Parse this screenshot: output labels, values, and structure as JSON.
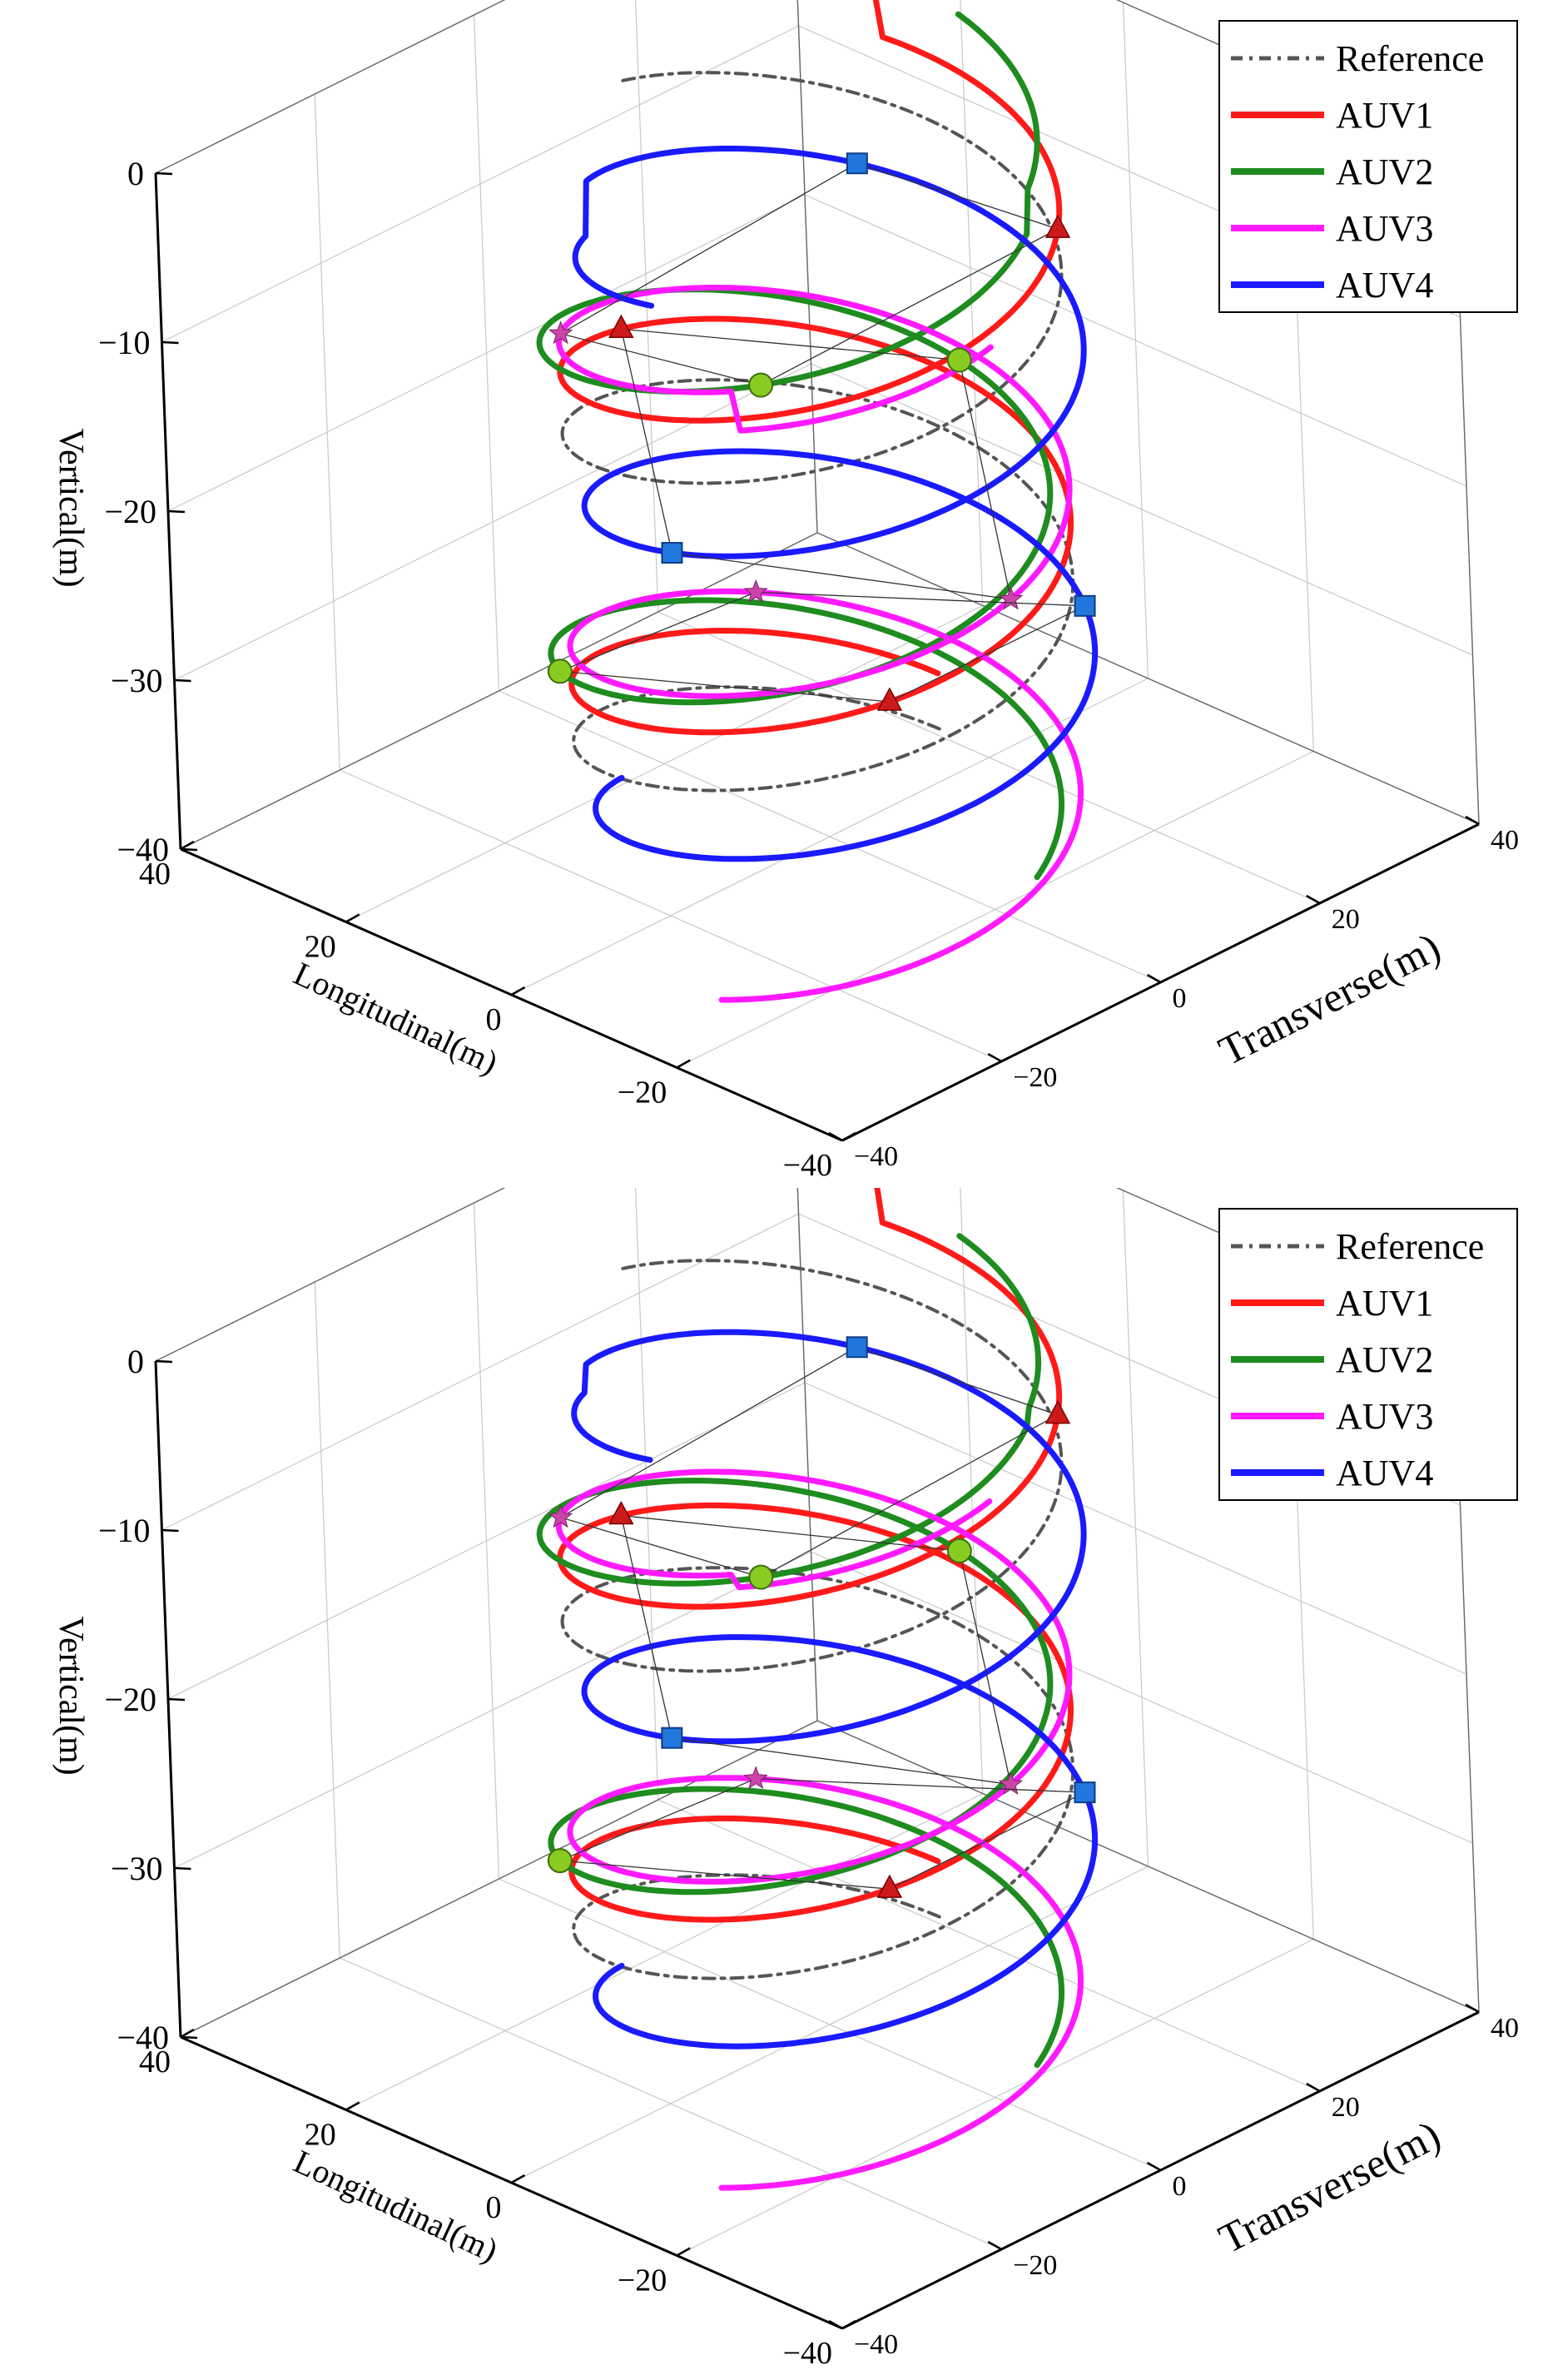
{
  "chart_data": [
    {
      "type": "line3d",
      "title": "",
      "axes": {
        "x": {
          "label": "Longitudinal(m)",
          "range": [
            -40,
            40
          ],
          "ticks": [
            "40",
            "20",
            "0",
            "−20",
            "−40"
          ]
        },
        "y": {
          "label": "Transverse(m)",
          "range": [
            -40,
            40
          ],
          "ticks": [
            "40",
            "20",
            "0",
            "−20",
            "−40"
          ]
        },
        "z": {
          "label": "Vertical(m)",
          "range": [
            -40,
            0
          ],
          "ticks": [
            "0",
            "−10",
            "−20",
            "−30",
            "−40"
          ]
        }
      },
      "grid": true,
      "legend_position": "top-right",
      "helix": {
        "radius": 22,
        "turns": 2.2,
        "z_start": 0,
        "z_end": -40
      },
      "series": [
        {
          "name": "Reference",
          "color": "#555555",
          "style": "dash-dot",
          "phase_deg": 0,
          "offset": 0,
          "start_offset_z": 0,
          "marker": "none"
        },
        {
          "name": "AUV1",
          "color": "#ff1a1a",
          "style": "solid",
          "phase_deg": 0,
          "offset": 6,
          "start_offset_z": 4,
          "marker": "cone",
          "marker_color": "#cc1a1a"
        },
        {
          "name": "AUV2",
          "color": "#1e8c1e",
          "style": "solid",
          "phase_deg": 90,
          "offset": 6,
          "start_offset_z": 3,
          "marker": "sphere",
          "marker_color": "#88cc22"
        },
        {
          "name": "AUV3",
          "color": "#ff1aff",
          "style": "solid",
          "phase_deg": 180,
          "offset": 6,
          "start_offset_z": -3,
          "marker": "star",
          "marker_color": "#cc44aa"
        },
        {
          "name": "AUV4",
          "color": "#1a1aff",
          "style": "solid",
          "phase_deg": 270,
          "offset": 6,
          "start_offset_z": -4,
          "marker": "cube",
          "marker_color": "#2277dd"
        }
      ]
    },
    {
      "type": "line3d",
      "title": "",
      "axes": {
        "x": {
          "label": "Longitudinal(m)",
          "range": [
            -40,
            40
          ],
          "ticks": [
            "40",
            "20",
            "0",
            "−20",
            "−40"
          ]
        },
        "y": {
          "label": "Transverse(m)",
          "range": [
            -40,
            40
          ],
          "ticks": [
            "40",
            "20",
            "0",
            "−20",
            "−40"
          ]
        },
        "z": {
          "label": "Vertical(m)",
          "range": [
            -40,
            0
          ],
          "ticks": [
            "0",
            "−10",
            "−20",
            "−30",
            "−40"
          ]
        }
      },
      "grid": true,
      "legend_position": "top-right",
      "helix": {
        "radius": 22,
        "turns": 2.2,
        "z_start": 0,
        "z_end": -40
      },
      "series": [
        {
          "name": "Reference",
          "color": "#555555",
          "style": "dash-dot",
          "phase_deg": 0,
          "offset": 0,
          "start_offset_z": 0,
          "marker": "none"
        },
        {
          "name": "AUV1",
          "color": "#ff1a1a",
          "style": "solid",
          "phase_deg": 0,
          "offset": 6,
          "start_offset_z": 5,
          "marker": "cone",
          "marker_color": "#cc1a1a"
        },
        {
          "name": "AUV2",
          "color": "#1e8c1e",
          "style": "solid",
          "phase_deg": 90,
          "offset": 6,
          "start_offset_z": 1,
          "marker": "sphere",
          "marker_color": "#88cc22"
        },
        {
          "name": "AUV3",
          "color": "#ff1aff",
          "style": "solid",
          "phase_deg": 180,
          "offset": 6,
          "start_offset_z": -1,
          "marker": "star",
          "marker_color": "#cc44aa"
        },
        {
          "name": "AUV4",
          "color": "#1a1aff",
          "style": "solid",
          "phase_deg": 270,
          "offset": 6,
          "start_offset_z": -2,
          "marker": "cube",
          "marker_color": "#2277dd"
        }
      ]
    }
  ]
}
